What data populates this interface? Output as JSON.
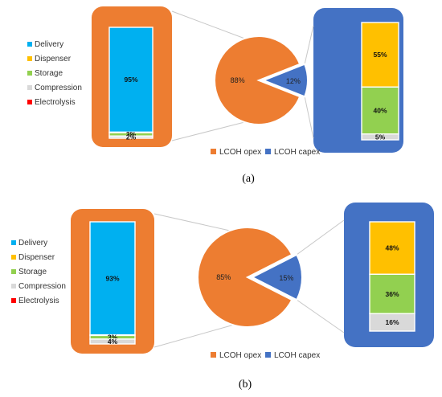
{
  "colors": {
    "opex": "#ED7D31",
    "capex": "#4472C4",
    "delivery": "#00B0F0",
    "dispenser": "#FFC000",
    "storage": "#92D050",
    "compression": "#D9D9D9",
    "electrolysis": "#FF0000"
  },
  "chart_data": [
    {
      "type": "bar-of-pie",
      "panel_label": "(a)",
      "pie": {
        "slices": [
          {
            "name": "LCOH opex",
            "value": 88,
            "label": "88%"
          },
          {
            "name": "LCOH capex",
            "value": 12,
            "label": "12%"
          }
        ]
      },
      "opex_breakdown": {
        "type": "stacked-bar",
        "segments": [
          {
            "name": "Delivery",
            "value": 95,
            "label": "95%"
          },
          {
            "name": "Dispenser",
            "value": 0.5,
            "label": ""
          },
          {
            "name": "Storage",
            "value": 3,
            "label": "3%"
          },
          {
            "name": "Compression",
            "value": 2,
            "label": "2%"
          },
          {
            "name": "Electrolysis",
            "value": 0,
            "label": ""
          }
        ]
      },
      "capex_breakdown": {
        "type": "stacked-bar",
        "segments": [
          {
            "name": "Dispenser",
            "value": 55,
            "label": "55%"
          },
          {
            "name": "Storage",
            "value": 40,
            "label": "40%"
          },
          {
            "name": "Compression",
            "value": 5,
            "label": "5%"
          }
        ]
      },
      "legend_left": [
        "Delivery",
        "Dispenser",
        "Storage",
        "Compression",
        "Electrolysis"
      ],
      "legend_bottom": [
        "LCOH opex",
        "LCOH capex"
      ]
    },
    {
      "type": "bar-of-pie",
      "panel_label": "(b)",
      "pie": {
        "slices": [
          {
            "name": "LCOH opex",
            "value": 85,
            "label": "85%"
          },
          {
            "name": "LCOH capex",
            "value": 15,
            "label": "15%"
          }
        ]
      },
      "opex_breakdown": {
        "type": "stacked-bar",
        "segments": [
          {
            "name": "Delivery",
            "value": 93,
            "label": "93%"
          },
          {
            "name": "Dispenser",
            "value": 0.5,
            "label": ""
          },
          {
            "name": "Storage",
            "value": 3,
            "label": "3%"
          },
          {
            "name": "Compression",
            "value": 4,
            "label": "4%"
          },
          {
            "name": "Electrolysis",
            "value": 0,
            "label": ""
          }
        ]
      },
      "capex_breakdown": {
        "type": "stacked-bar",
        "segments": [
          {
            "name": "Dispenser",
            "value": 48,
            "label": "48%"
          },
          {
            "name": "Storage",
            "value": 36,
            "label": "36%"
          },
          {
            "name": "Compression",
            "value": 16,
            "label": "16%"
          }
        ]
      },
      "legend_left": [
        "Delivery",
        "Dispenser",
        "Storage",
        "Compression",
        "Electrolysis"
      ],
      "legend_bottom": [
        "LCOH opex",
        "LCOH capex"
      ]
    }
  ]
}
